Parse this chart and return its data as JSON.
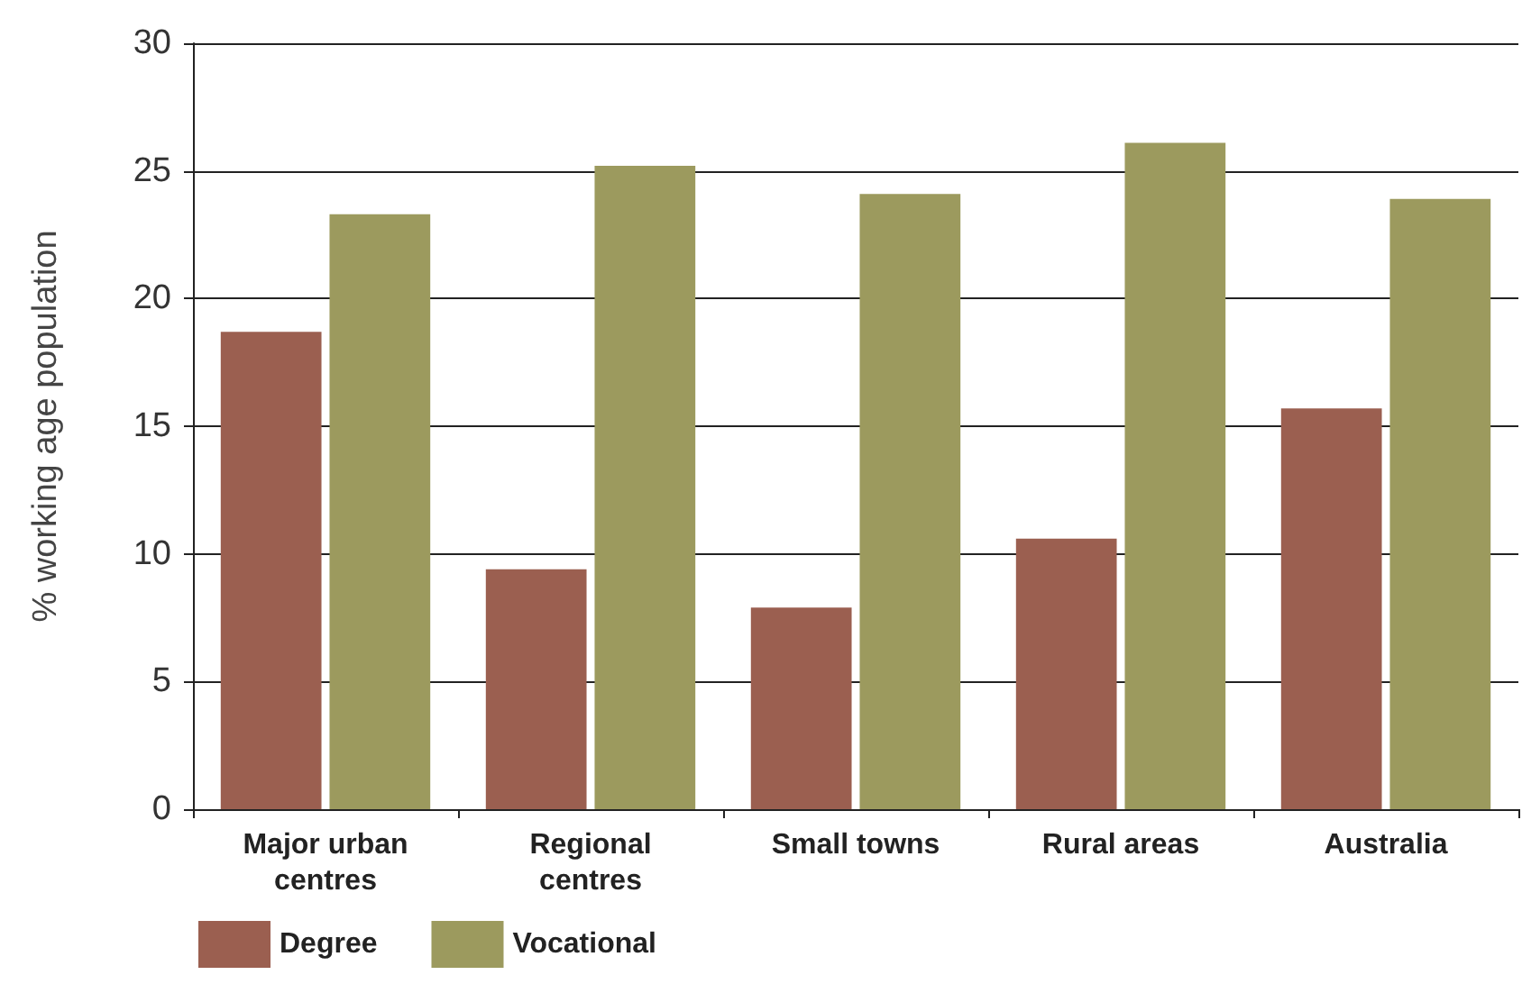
{
  "chart_data": {
    "type": "bar",
    "ylabel": "% working age population",
    "categories": [
      "Major urban\ncentres",
      "Regional\ncentres",
      "Small towns",
      "Rural areas",
      "Australia"
    ],
    "series": [
      {
        "name": "Degree",
        "color": "#9b5f50",
        "values": [
          18.7,
          9.4,
          7.9,
          10.6,
          15.7
        ]
      },
      {
        "name": "Vocational",
        "color": "#9c9a5e",
        "values": [
          23.3,
          25.2,
          24.1,
          26.1,
          23.9
        ]
      }
    ],
    "ylim": [
      0,
      30
    ],
    "yticks": [
      0,
      5,
      10,
      15,
      20,
      25,
      30
    ],
    "grid": "y",
    "legend": "bottom left"
  }
}
